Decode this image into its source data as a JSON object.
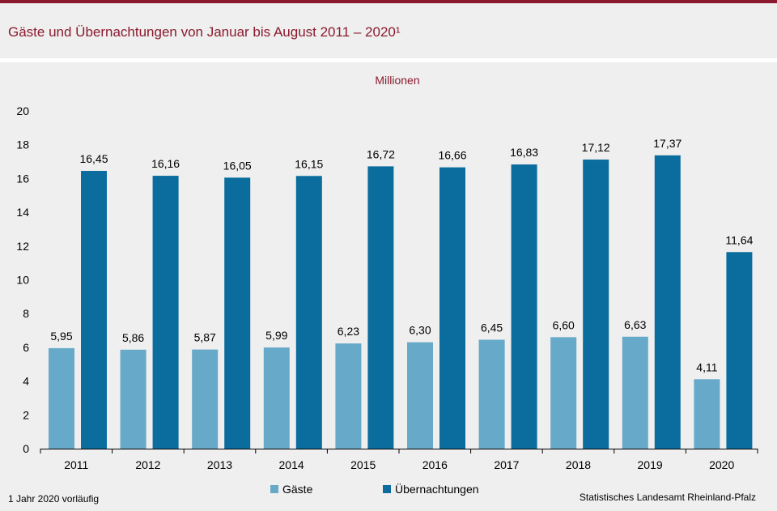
{
  "title": "Gäste und Übernachtungen von Januar bis August 2011 – 2020¹",
  "unit_label": "Millionen",
  "footnote": "1 Jahr 2020 vorläufig",
  "source": "Statistisches Landesamt  Rheinland-Pfalz",
  "colors": {
    "brand": "#8b1a2e",
    "gaeste": "#67a9c9",
    "uebernachtungen": "#0a6d9e",
    "background": "#eeefee"
  },
  "chart_data": {
    "type": "bar",
    "title": "Gäste und Übernachtungen von Januar bis August 2011 – 2020¹",
    "ylabel": "Millionen",
    "xlabel": "",
    "categories": [
      "2011",
      "2012",
      "2013",
      "2014",
      "2015",
      "2016",
      "2017",
      "2018",
      "2019",
      "2020"
    ],
    "ylim": [
      0,
      20
    ],
    "yticks": [
      0,
      2,
      4,
      6,
      8,
      10,
      12,
      14,
      16,
      18,
      20
    ],
    "grid": false,
    "legend_position": "bottom",
    "series": [
      {
        "name": "Gäste",
        "values": [
          5.95,
          5.86,
          5.87,
          5.99,
          6.23,
          6.3,
          6.45,
          6.6,
          6.63,
          4.11
        ],
        "labels": [
          "5,95",
          "5,86",
          "5,87",
          "5,99",
          "6,23",
          "6,30",
          "6,45",
          "6,60",
          "6,63",
          "4,11"
        ]
      },
      {
        "name": "Übernachtungen",
        "values": [
          16.45,
          16.16,
          16.05,
          16.15,
          16.72,
          16.66,
          16.83,
          17.12,
          17.37,
          11.64
        ],
        "labels": [
          "16,45",
          "16,16",
          "16,05",
          "16,15",
          "16,72",
          "16,66",
          "16,83",
          "17,12",
          "17,37",
          "11,64"
        ]
      }
    ]
  }
}
